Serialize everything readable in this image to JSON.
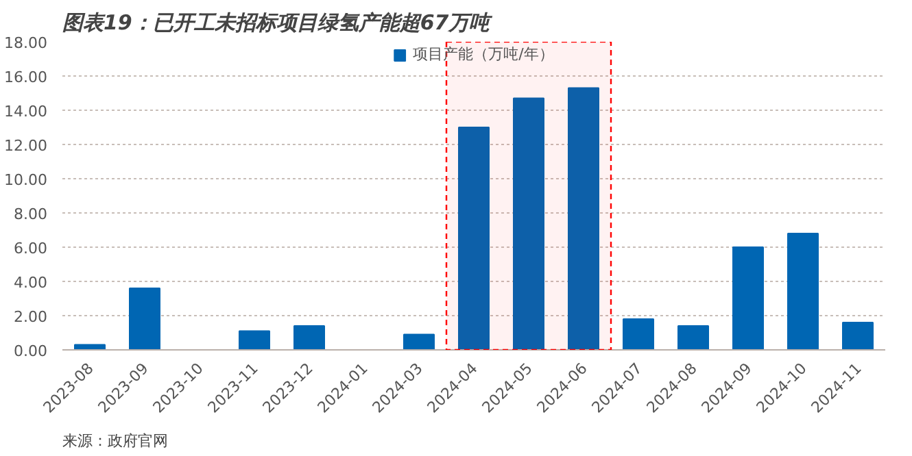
{
  "chart_data": {
    "type": "bar",
    "title": "图表19：已开工未招标项目绿氢产能超67万吨",
    "categories": [
      "2023-08",
      "2023-09",
      "2023-10",
      "2023-11",
      "2023-12",
      "2024-01",
      "2024-03",
      "2024-04",
      "2024-05",
      "2024-06",
      "2024-07",
      "2024-08",
      "2024-09",
      "2024-10",
      "2024-11"
    ],
    "series": [
      {
        "name": "项目产能（万吨/年）",
        "color": "#0066b3",
        "values": [
          0.3,
          3.6,
          0,
          1.1,
          1.4,
          0,
          0.9,
          13.0,
          14.7,
          15.3,
          1.8,
          1.4,
          6.0,
          6.8,
          1.6
        ]
      }
    ],
    "ylim": [
      0,
      18
    ],
    "yticks": [
      {
        "value": 0,
        "label": "0.00"
      },
      {
        "value": 2,
        "label": "2.00"
      },
      {
        "value": 4,
        "label": "4.00"
      },
      {
        "value": 6,
        "label": "6.00"
      },
      {
        "value": 8,
        "label": "8.00"
      },
      {
        "value": 10,
        "label": "10.00"
      },
      {
        "value": 12,
        "label": "12.00"
      },
      {
        "value": 14,
        "label": "14.00"
      },
      {
        "value": 16,
        "label": "16.00"
      },
      {
        "value": 18,
        "label": "18.00"
      }
    ],
    "grid": "y",
    "legend": "top",
    "bands": [
      {
        "axis": "x",
        "from": "2024-04",
        "to": "2024-06",
        "label": null,
        "color": "#ff0000"
      }
    ],
    "annotations": [
      "来源：政府官网"
    ]
  }
}
